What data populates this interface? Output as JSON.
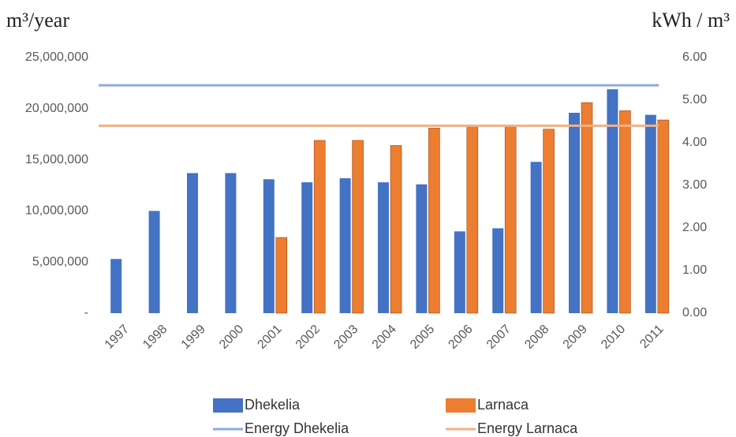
{
  "chart_data": {
    "type": "bar",
    "y_label": "m³/year",
    "y2_label": "kWh / m³",
    "categories": [
      "1997",
      "1998",
      "1999",
      "2000",
      "2001",
      "2002",
      "2003",
      "2004",
      "2005",
      "2006",
      "2007",
      "2008",
      "2009",
      "2010",
      "2011"
    ],
    "series": [
      {
        "name": "Dhekelia",
        "type": "bar",
        "color": "#4472c4",
        "values": [
          5300000,
          10000000,
          13700000,
          13700000,
          13100000,
          12800000,
          13200000,
          12800000,
          12600000,
          8000000,
          8300000,
          14800000,
          19600000,
          21900000,
          19400000
        ]
      },
      {
        "name": "Larnaca",
        "type": "bar",
        "color": "#ed7d31",
        "values": [
          null,
          null,
          null,
          null,
          7400000,
          16900000,
          16900000,
          16400000,
          18100000,
          18400000,
          18300000,
          18000000,
          20600000,
          19800000,
          18900000
        ]
      },
      {
        "name": "Energy Dhekelia",
        "type": "line",
        "axis": "y2",
        "color": "#8faadc",
        "values": [
          5.35,
          5.35,
          5.35,
          5.35,
          5.35,
          5.35,
          5.35,
          5.35,
          5.35,
          5.35,
          5.35,
          5.35,
          5.35,
          5.35,
          5.35
        ]
      },
      {
        "name": "Energy Larnaca",
        "type": "line",
        "axis": "y2",
        "color": "#f4b183",
        "values": [
          4.4,
          4.4,
          4.4,
          4.4,
          4.4,
          4.4,
          4.4,
          4.4,
          4.4,
          4.4,
          4.4,
          4.4,
          4.4,
          4.4,
          4.4
        ]
      }
    ],
    "ylim": [
      0,
      25000000
    ],
    "yticks": [
      {
        "value": 0,
        "label": "-"
      },
      {
        "value": 5000000,
        "label": "5,000,000"
      },
      {
        "value": 10000000,
        "label": "10,000,000"
      },
      {
        "value": 15000000,
        "label": "15,000,000"
      },
      {
        "value": 20000000,
        "label": "20,000,000"
      },
      {
        "value": 25000000,
        "label": "25,000,000"
      }
    ],
    "y2lim": [
      0,
      6
    ],
    "y2ticks": [
      {
        "value": 0,
        "label": "0.00"
      },
      {
        "value": 1,
        "label": "1.00"
      },
      {
        "value": 2,
        "label": "2.00"
      },
      {
        "value": 3,
        "label": "3.00"
      },
      {
        "value": 4,
        "label": "4.00"
      },
      {
        "value": 5,
        "label": "5.00"
      },
      {
        "value": 6,
        "label": "6.00"
      }
    ],
    "grid": false,
    "legend": "bottom"
  }
}
